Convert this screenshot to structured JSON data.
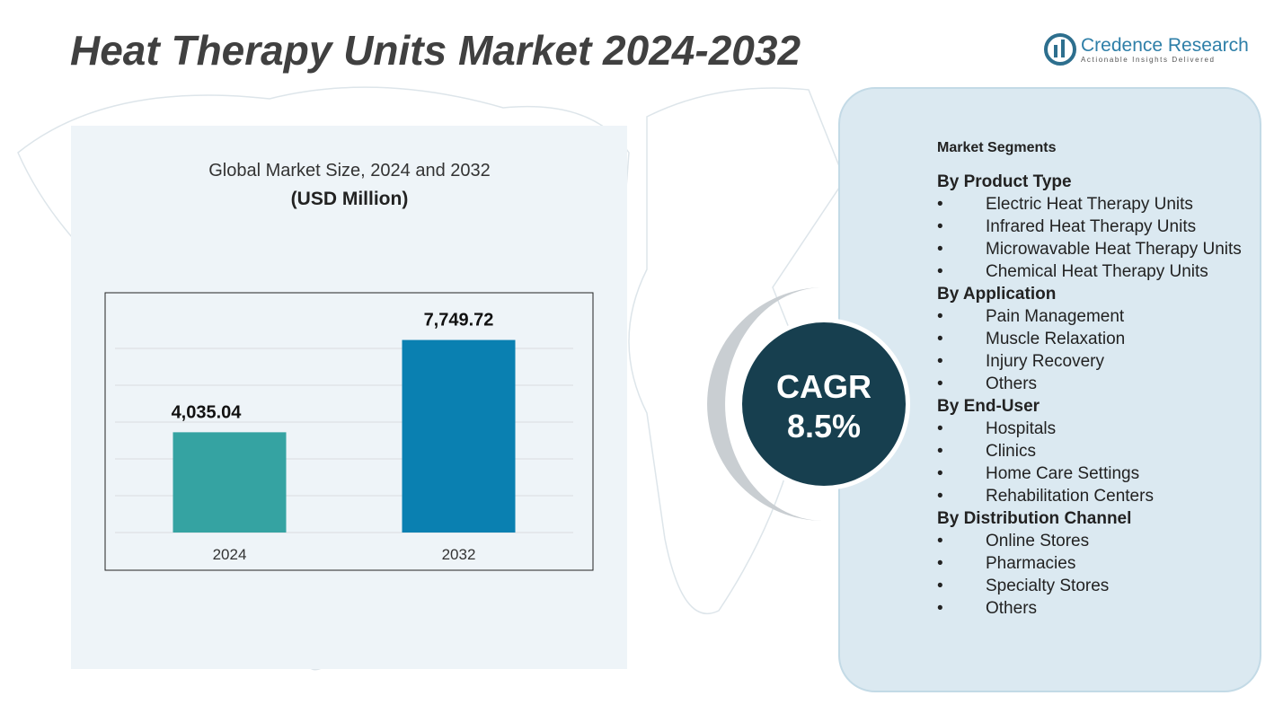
{
  "title": "Heat Therapy Units Market  2024-2032",
  "logo": {
    "name": "Credence Research",
    "tagline": "Actionable Insights Delivered"
  },
  "chart_data": {
    "type": "bar",
    "title": "Global Market Size, 2024 and 2032",
    "subtitle": "(USD Million)",
    "categories": [
      "2024",
      "2032"
    ],
    "values": [
      4035.04,
      7749.72
    ],
    "value_labels": [
      "4,035.04",
      "7,749.72"
    ],
    "colors": [
      "#35a3a2",
      "#0a80b1"
    ],
    "ylim": [
      0,
      9000
    ]
  },
  "cagr": {
    "label": "CAGR",
    "value": "8.5%"
  },
  "segments": {
    "title": "Market Segments",
    "groups": [
      {
        "title": "By Product Type",
        "items": [
          "Electric Heat Therapy Units",
          "Infrared Heat Therapy Units",
          "Microwavable Heat Therapy Units",
          "Chemical Heat Therapy Units"
        ]
      },
      {
        "title": "By Application",
        "items": [
          "Pain Management",
          "Muscle Relaxation",
          "Injury Recovery",
          "Others"
        ]
      },
      {
        "title": "By End-User",
        "items": [
          "Hospitals",
          "Clinics",
          "Home Care Settings",
          "Rehabilitation Centers"
        ]
      },
      {
        "title": "By Distribution Channel",
        "items": [
          "Online Stores",
          "Pharmacies",
          "Specialty Stores",
          "Others"
        ]
      }
    ]
  }
}
